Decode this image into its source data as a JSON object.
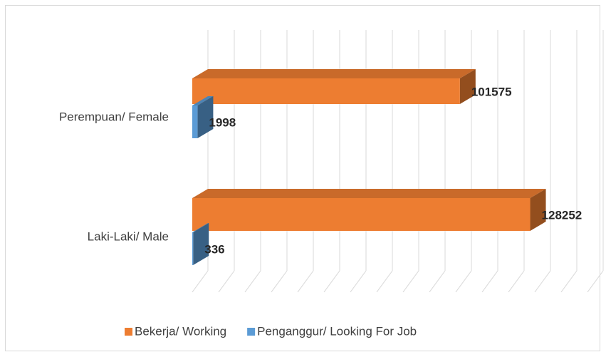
{
  "chart_data": {
    "type": "bar3d_horizontal",
    "categories": [
      "Perempuan/ Female",
      "Laki-Laki/ Male"
    ],
    "series": [
      {
        "name": "Bekerja/ Working",
        "color": "#ed7d31",
        "values": [
          101575,
          128252
        ]
      },
      {
        "name": "Penganggur/ Looking For Job",
        "color": "#5b9bd5",
        "values": [
          1998,
          336
        ]
      }
    ],
    "xlim": [
      0,
      150000
    ],
    "xticks": [
      0,
      10000,
      20000,
      30000,
      40000,
      50000,
      60000,
      70000,
      80000,
      90000,
      100000,
      110000,
      120000,
      130000,
      140000,
      150000
    ],
    "grid": true,
    "legend": "bottom"
  }
}
